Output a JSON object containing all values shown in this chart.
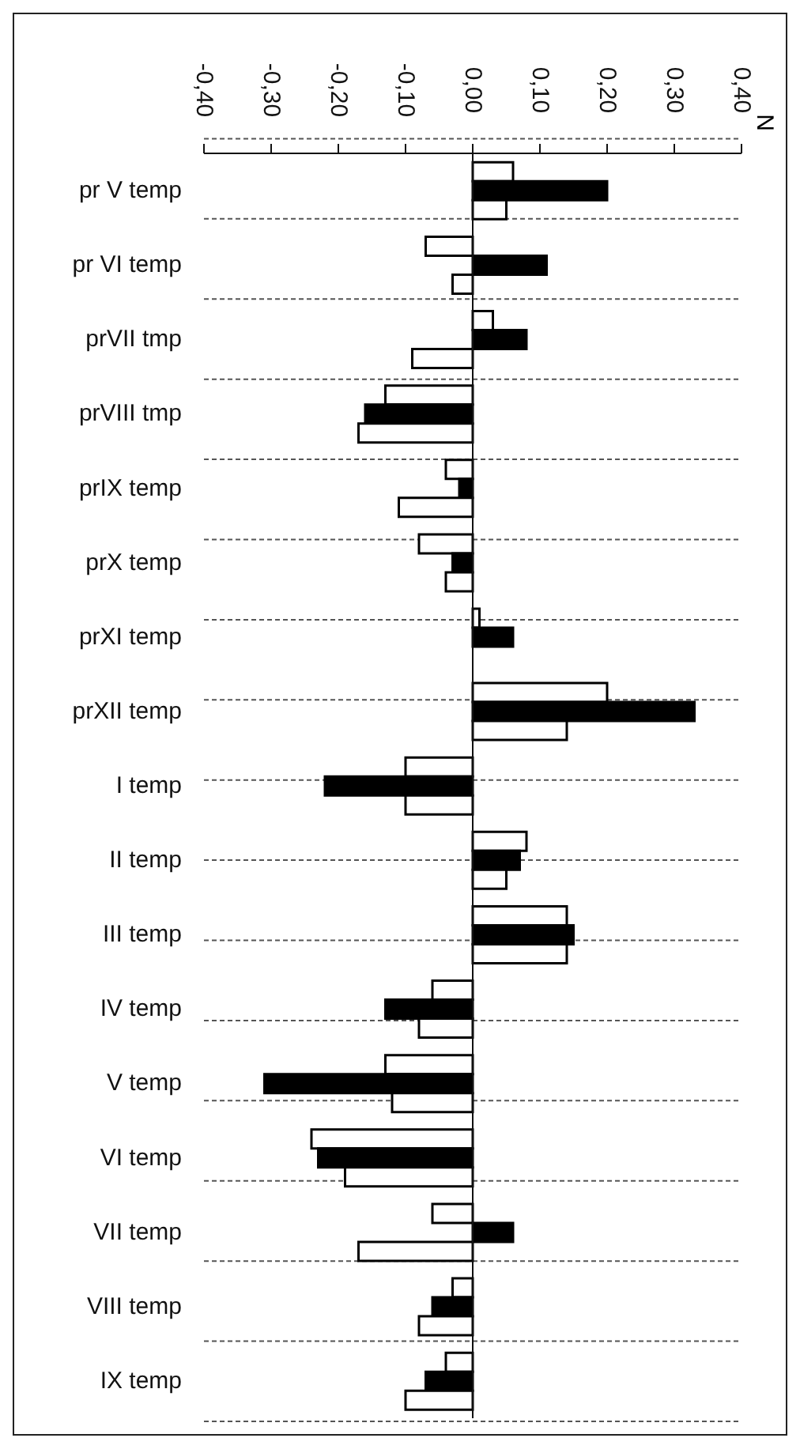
{
  "chart_data": {
    "type": "bar",
    "orientation": "horizontal",
    "categories": [
      "pr V temp",
      "pr VI temp",
      "prVII tmp",
      "prVIII tmp",
      "prIX temp",
      "prX temp",
      "prXI temp",
      "prXII temp",
      "I temp",
      "II temp",
      "III temp",
      "IV temp",
      "V temp",
      "VI temp",
      "VII temp",
      "VIII temp",
      "IX temp"
    ],
    "series": [
      {
        "color": "#ffffff",
        "values": [
          0.06,
          -0.07,
          0.03,
          -0.13,
          -0.04,
          -0.08,
          0.01,
          0.2,
          -0.1,
          0.08,
          0.14,
          -0.06,
          -0.13,
          -0.24,
          -0.06,
          -0.03,
          -0.04
        ]
      },
      {
        "color": "#000000",
        "values": [
          0.2,
          0.11,
          0.08,
          -0.16,
          -0.02,
          -0.03,
          0.06,
          0.33,
          -0.22,
          0.07,
          0.15,
          -0.13,
          -0.31,
          -0.23,
          0.06,
          -0.06,
          -0.07
        ]
      },
      {
        "color": "#ffffff",
        "values": [
          0.05,
          -0.03,
          -0.09,
          -0.17,
          -0.11,
          -0.04,
          0.0,
          0.14,
          -0.1,
          0.05,
          0.14,
          -0.08,
          -0.12,
          -0.19,
          -0.17,
          -0.08,
          -0.1
        ]
      }
    ],
    "xlim": [
      -0.4,
      0.4
    ],
    "xticks": [
      {
        "value": -0.4,
        "label": "-0,40"
      },
      {
        "value": -0.3,
        "label": "-0,30"
      },
      {
        "value": -0.2,
        "label": "-0,20"
      },
      {
        "value": -0.1,
        "label": "-0,10"
      },
      {
        "value": 0,
        "label": "0,00"
      },
      {
        "value": 0.1,
        "label": "0,10"
      },
      {
        "value": 0.2,
        "label": "0,20"
      },
      {
        "value": 0.3,
        "label": "0,30"
      },
      {
        "value": 0.4,
        "label": "0,40"
      }
    ],
    "annotations": [
      "N"
    ],
    "grid": "y"
  }
}
